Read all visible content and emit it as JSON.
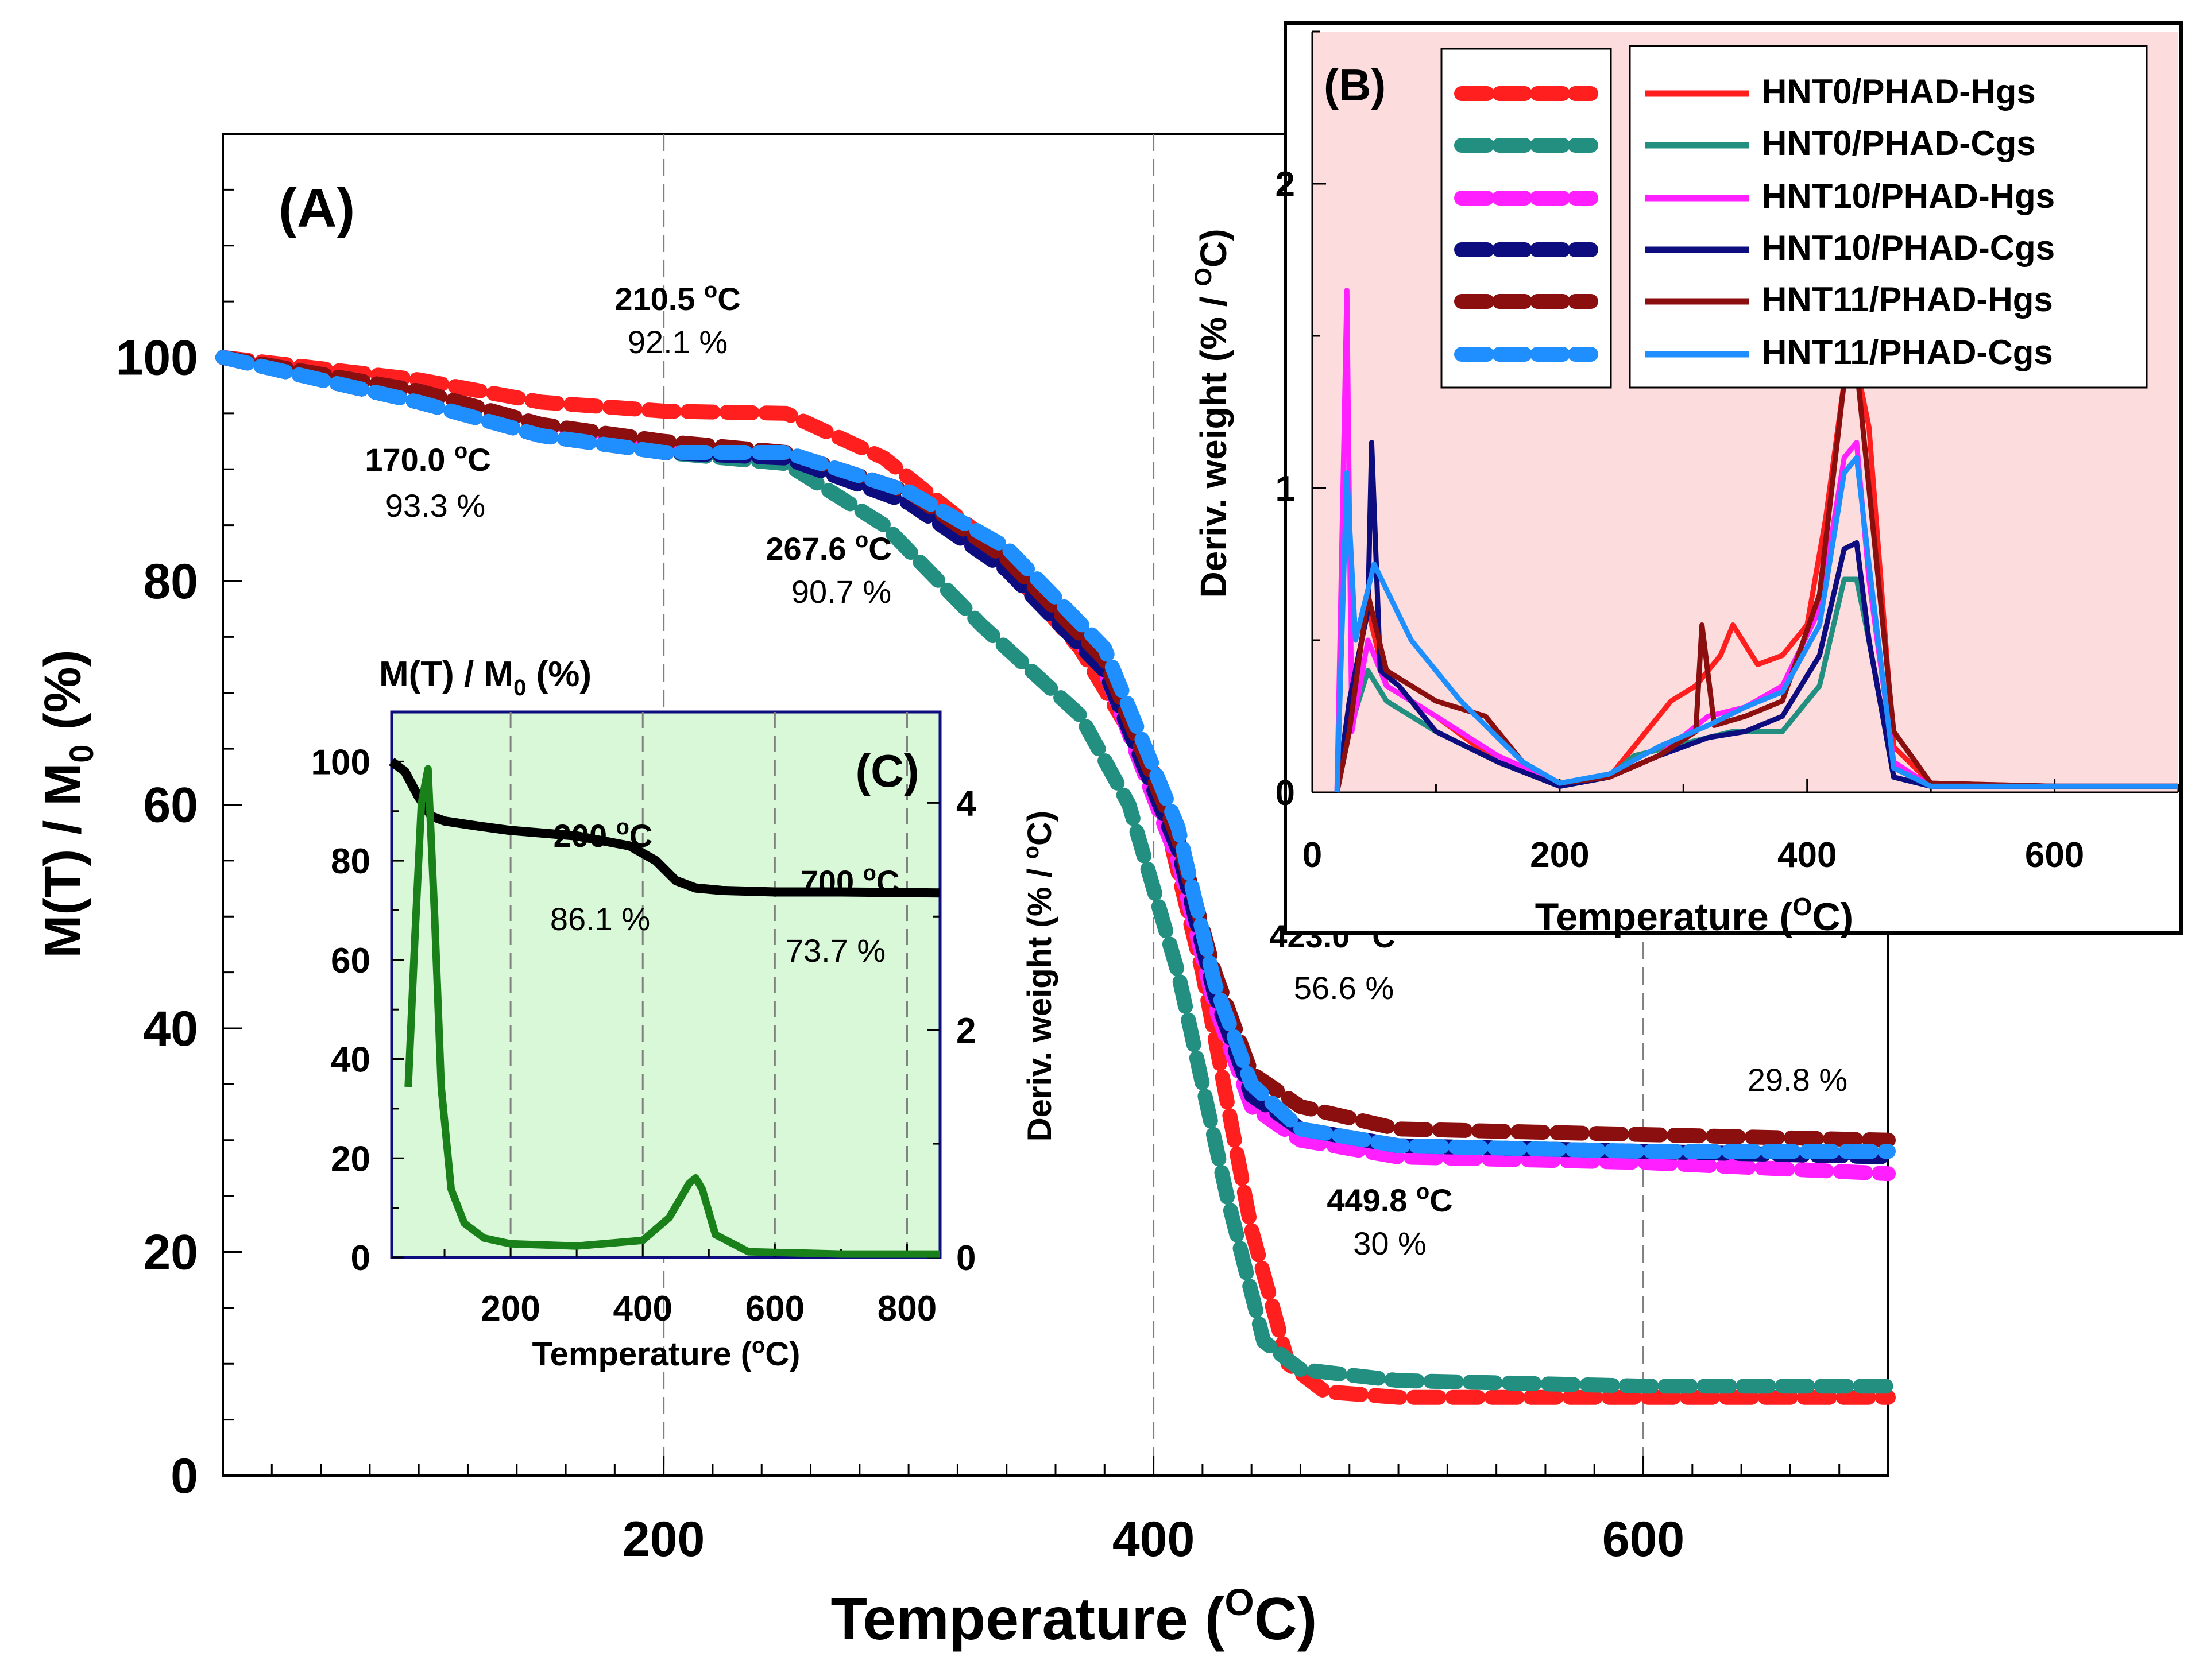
{
  "colors": {
    "hnt0_h": "#ff1f1f",
    "hnt0_c": "#238f80",
    "hnt10_h": "#ff1fff",
    "hnt10_c": "#0d0d80",
    "hnt11_h": "#8b0f0f",
    "hnt11_c": "#1f8fff",
    "insetB_bg": "#fcdcdc",
    "insetC_bg": "#d8f8d8",
    "insetC_black": "#000000",
    "insetC_green": "#1a801a",
    "grid": "#808080"
  },
  "chart_data": [
    {
      "id": "A",
      "type": "line",
      "panel_label": "(A)",
      "xlabel": "Temperature (",
      "xlabel_unit": "O",
      "xlabel_tail": "C)",
      "ylabel": "M(T) / M",
      "ylabel_sub": "0",
      "ylabel_tail": " (%)",
      "xlim": [
        20,
        700
      ],
      "ylim": [
        0,
        120
      ],
      "xticks": [
        "200",
        "400",
        "600"
      ],
      "yticks": [
        "0",
        "20",
        "40",
        "60",
        "80",
        "100"
      ],
      "vlines": [
        200,
        400,
        600
      ],
      "series": [
        {
          "name": "HNT0/PHAD-Hgs",
          "x": [
            20,
            100,
            150,
            200,
            250,
            290,
            330,
            370,
            400,
            420,
            440,
            455,
            470,
            500,
            600,
            700
          ],
          "y": [
            100,
            98,
            96,
            95.2,
            95,
            91,
            84,
            74,
            63,
            45,
            22,
            10,
            7.5,
            7,
            7,
            7
          ]
        },
        {
          "name": "HNT0/PHAD-Cgs",
          "x": [
            20,
            100,
            150,
            200,
            250,
            290,
            330,
            370,
            390,
            410,
            430,
            445,
            460,
            500,
            600,
            700
          ],
          "y": [
            100,
            96,
            93,
            91.5,
            90.5,
            85,
            76,
            68,
            60,
            45,
            25,
            12,
            9.5,
            8.5,
            8,
            8
          ]
        },
        {
          "name": "HNT10/PHAD-Hgs",
          "x": [
            20,
            100,
            150,
            200,
            250,
            300,
            340,
            380,
            410,
            425,
            440,
            460,
            500,
            600,
            700
          ],
          "y": [
            100,
            97,
            94,
            92,
            91.5,
            88,
            82,
            72,
            55,
            42,
            33,
            30,
            28.5,
            28,
            27
          ]
        },
        {
          "name": "HNT10/PHAD-Cgs",
          "x": [
            20,
            100,
            150,
            200,
            250,
            300,
            340,
            380,
            410,
            425,
            440,
            460,
            500,
            600,
            700
          ],
          "y": [
            100,
            96,
            93,
            91.5,
            91,
            87,
            81,
            72,
            56,
            43,
            34,
            31,
            29.5,
            29,
            28.5
          ]
        },
        {
          "name": "HNT11/PHAD-Hgs",
          "x": [
            20,
            100,
            150,
            200,
            250,
            300,
            340,
            380,
            410,
            425,
            440,
            460,
            500,
            600,
            700
          ],
          "y": [
            100,
            97,
            94,
            92.5,
            91.5,
            88,
            82,
            73,
            57,
            45,
            36,
            33,
            31,
            30.5,
            30
          ]
        },
        {
          "name": "HNT11/PHAD-Cgs",
          "x": [
            20,
            100,
            150,
            200,
            250,
            300,
            340,
            380,
            410,
            425,
            440,
            460,
            500,
            600,
            700
          ],
          "y": [
            100,
            96,
            93,
            91.5,
            91.5,
            88,
            83,
            74,
            58,
            44,
            35,
            31,
            29.5,
            29,
            29
          ]
        }
      ],
      "annotations": [
        {
          "id": "a1",
          "bold": "210.5 ",
          "sup": "o",
          "boldtail": "C",
          "pct": "92.1 %"
        },
        {
          "id": "a2",
          "bold": "170.0 ",
          "sup": "o",
          "boldtail": "C",
          "pct": "93.3 %"
        },
        {
          "id": "a3",
          "bold": "267.6 ",
          "sup": "o",
          "boldtail": "C",
          "pct": "90.7 %"
        },
        {
          "id": "a4",
          "bold": "423.0 ",
          "sup": "o",
          "boldtail": "C",
          "pct": "56.6 %"
        },
        {
          "id": "a5",
          "bold": "",
          "sup": "",
          "boldtail": "",
          "pct": "29.8 %"
        },
        {
          "id": "a6",
          "bold": "449.8 ",
          "sup": "o",
          "boldtail": "C",
          "pct": "30 %"
        }
      ]
    },
    {
      "id": "B",
      "type": "line",
      "panel_label": "(B)",
      "xlabel": "Temperature (",
      "xlabel_unit": "O",
      "xlabel_tail": "C)",
      "ylabel": "Deriv. weight (% / ",
      "ylabel_unit": "O",
      "ylabel_tail": "C)",
      "xlim": [
        0,
        700
      ],
      "ylim": [
        0,
        2.5
      ],
      "xticks": [
        "0",
        "200",
        "400",
        "600"
      ],
      "yticks": [
        "0",
        "1",
        "2"
      ],
      "legend": [
        "HNT0/PHAD-Hgs",
        "HNT0/PHAD-Cgs",
        "HNT10/PHAD-Hgs",
        "HNT10/PHAD-Cgs",
        "HNT11/PHAD-Hgs",
        "HNT11/PHAD-Cgs"
      ],
      "legend_position": "top-right",
      "series": [
        {
          "name": "HNT0/PHAD-Hgs",
          "x": [
            20,
            30,
            45,
            60,
            100,
            150,
            200,
            240,
            260,
            290,
            310,
            330,
            340,
            360,
            380,
            400,
            415,
            430,
            440,
            450,
            470,
            500,
            600,
            700
          ],
          "y": [
            0,
            0.3,
            0.6,
            0.35,
            0.25,
            0.1,
            0.02,
            0.05,
            0.15,
            0.3,
            0.35,
            0.45,
            0.55,
            0.42,
            0.45,
            0.55,
            0.9,
            1.35,
            1.4,
            1.2,
            0.15,
            0.03,
            0.02,
            0.02
          ]
        },
        {
          "name": "HNT0/PHAD-Cgs",
          "x": [
            20,
            30,
            45,
            60,
            100,
            150,
            200,
            240,
            260,
            290,
            320,
            340,
            380,
            410,
            430,
            440,
            450,
            470,
            500,
            600,
            700
          ],
          "y": [
            0,
            0.2,
            0.4,
            0.3,
            0.2,
            0.1,
            0.02,
            0.05,
            0.12,
            0.15,
            0.18,
            0.2,
            0.2,
            0.35,
            0.7,
            0.7,
            0.5,
            0.05,
            0.02,
            0.02,
            0.02
          ]
        },
        {
          "name": "HNT10/PHAD-Hgs",
          "x": [
            20,
            28,
            32,
            45,
            60,
            100,
            150,
            200,
            240,
            280,
            320,
            350,
            380,
            410,
            430,
            440,
            450,
            470,
            500,
            600,
            700
          ],
          "y": [
            0,
            1.65,
            0.2,
            0.5,
            0.35,
            0.25,
            0.12,
            0.03,
            0.05,
            0.12,
            0.25,
            0.28,
            0.35,
            0.6,
            1.1,
            1.15,
            0.7,
            0.1,
            0.02,
            0.02,
            0.02
          ]
        },
        {
          "name": "HNT10/PHAD-Cgs",
          "x": [
            20,
            30,
            45,
            48,
            55,
            70,
            100,
            150,
            200,
            240,
            280,
            320,
            350,
            380,
            410,
            430,
            440,
            450,
            470,
            500,
            600,
            700
          ],
          "y": [
            0,
            0.3,
            0.6,
            1.15,
            0.4,
            0.35,
            0.2,
            0.1,
            0.02,
            0.05,
            0.12,
            0.18,
            0.2,
            0.25,
            0.45,
            0.8,
            0.82,
            0.5,
            0.05,
            0.02,
            0.02,
            0.02
          ]
        },
        {
          "name": "HNT11/PHAD-Hgs",
          "x": [
            20,
            30,
            45,
            60,
            100,
            140,
            170,
            200,
            240,
            280,
            310,
            315,
            325,
            350,
            380,
            410,
            430,
            440,
            455,
            470,
            500,
            600,
            700
          ],
          "y": [
            0,
            0.2,
            0.65,
            0.4,
            0.3,
            0.25,
            0.1,
            0.03,
            0.05,
            0.12,
            0.2,
            0.55,
            0.22,
            0.25,
            0.3,
            0.65,
            1.35,
            1.4,
            0.8,
            0.2,
            0.03,
            0.02,
            0.02
          ]
        },
        {
          "name": "HNT11/PHAD-Cgs",
          "x": [
            20,
            28,
            35,
            50,
            80,
            120,
            170,
            200,
            240,
            280,
            320,
            350,
            380,
            410,
            430,
            440,
            450,
            470,
            500,
            600,
            700
          ],
          "y": [
            0,
            1.05,
            0.5,
            0.75,
            0.5,
            0.3,
            0.1,
            0.03,
            0.06,
            0.15,
            0.22,
            0.28,
            0.33,
            0.55,
            1.05,
            1.1,
            0.75,
            0.08,
            0.02,
            0.02,
            0.02
          ]
        }
      ]
    },
    {
      "id": "C",
      "type": "line",
      "panel_label": "(C)",
      "title": "M(T) / M",
      "title_sub": "0",
      "title_tail": " (%)",
      "xlabel": "Temperature (",
      "xlabel_unit": "o",
      "xlabel_tail": "C)",
      "y2label": "Deriv. weight (% / ",
      "y2label_unit": "o",
      "y2label_tail": "C)",
      "xlim": [
        20,
        850
      ],
      "ylim": [
        0,
        110
      ],
      "y2lim": [
        0,
        4.8
      ],
      "xticks": [
        "200",
        "400",
        "600",
        "800"
      ],
      "yticks": [
        "0",
        "20",
        "40",
        "60",
        "80",
        "100"
      ],
      "y2ticks": [
        "0",
        "2",
        "4"
      ],
      "vlines": [
        200,
        400,
        600,
        800
      ],
      "series": [
        {
          "name": "mass",
          "axis": "left",
          "x": [
            20,
            40,
            60,
            80,
            100,
            150,
            200,
            300,
            380,
            420,
            450,
            480,
            520,
            600,
            700,
            850
          ],
          "y": [
            100,
            98,
            93,
            89,
            88,
            87,
            86.1,
            85,
            83,
            80,
            76,
            74.5,
            74,
            73.7,
            73.7,
            73.5
          ]
        },
        {
          "name": "deriv",
          "axis": "right",
          "x": [
            45,
            55,
            65,
            75,
            85,
            95,
            110,
            130,
            160,
            200,
            300,
            400,
            440,
            470,
            480,
            490,
            510,
            560,
            700,
            850
          ],
          "y": [
            1.5,
            2.8,
            4,
            4.3,
            3,
            1.5,
            0.6,
            0.3,
            0.17,
            0.12,
            0.1,
            0.15,
            0.35,
            0.65,
            0.7,
            0.6,
            0.2,
            0.05,
            0.03,
            0.03
          ]
        }
      ],
      "annotations": [
        {
          "id": "c1",
          "bold": "200 ",
          "sup": "o",
          "boldtail": "C",
          "pct": "86.1 %"
        },
        {
          "id": "c2",
          "bold": "700 ",
          "sup": "o",
          "boldtail": "C",
          "pct": "73.7 %"
        }
      ]
    }
  ]
}
